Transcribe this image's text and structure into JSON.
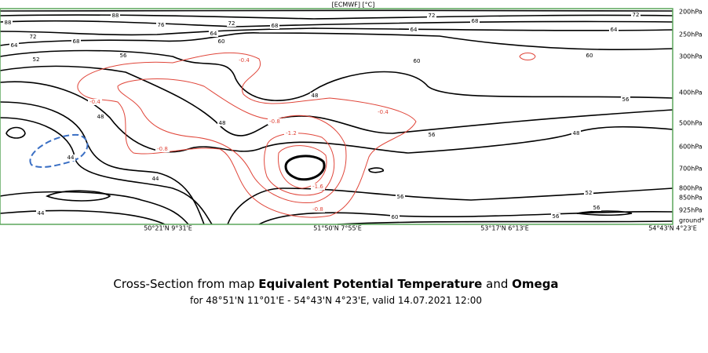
{
  "chart_data": {
    "type": "contour",
    "unit_label": "[ECMWF] [°C]",
    "title_prefix": "Cross-Section from map",
    "title_field_1": "Equivalent Potential Temperature",
    "title_join": "and",
    "title_field_2": "Omega",
    "subtitle": "for 48°51'N 11°01'E - 54°43'N 4°23'E, valid 14.07.2021 12:00",
    "y_labels": [
      "200hPa",
      "250hPa",
      "300hPa",
      "400hPa",
      "500hPa",
      "600hPa",
      "700hPa",
      "800hPa",
      "850hPa",
      "925hPa",
      "ground*"
    ],
    "x_labels": [
      "50°21'N 9°31'E",
      "51°50'N 7°55'E",
      "53°17'N 6°13'E",
      "54°43'N 4°23'E"
    ],
    "theta_e_labels": [
      88,
      76,
      72,
      68,
      72,
      68,
      72,
      88,
      72,
      68,
      64,
      64,
      64,
      64,
      60,
      60,
      60,
      56,
      52,
      56,
      48,
      48,
      48,
      56,
      48,
      44,
      44,
      44,
      52,
      56,
      60,
      56,
      56
    ],
    "omega_labels": [
      -0.4,
      -0.4,
      -0.4,
      -0.8,
      -1.2,
      -0.8,
      -1.6,
      -0.8
    ],
    "theta_e_color": "#000000",
    "omega_color": "#e0463a",
    "frame_color": "#5aa55a"
  }
}
